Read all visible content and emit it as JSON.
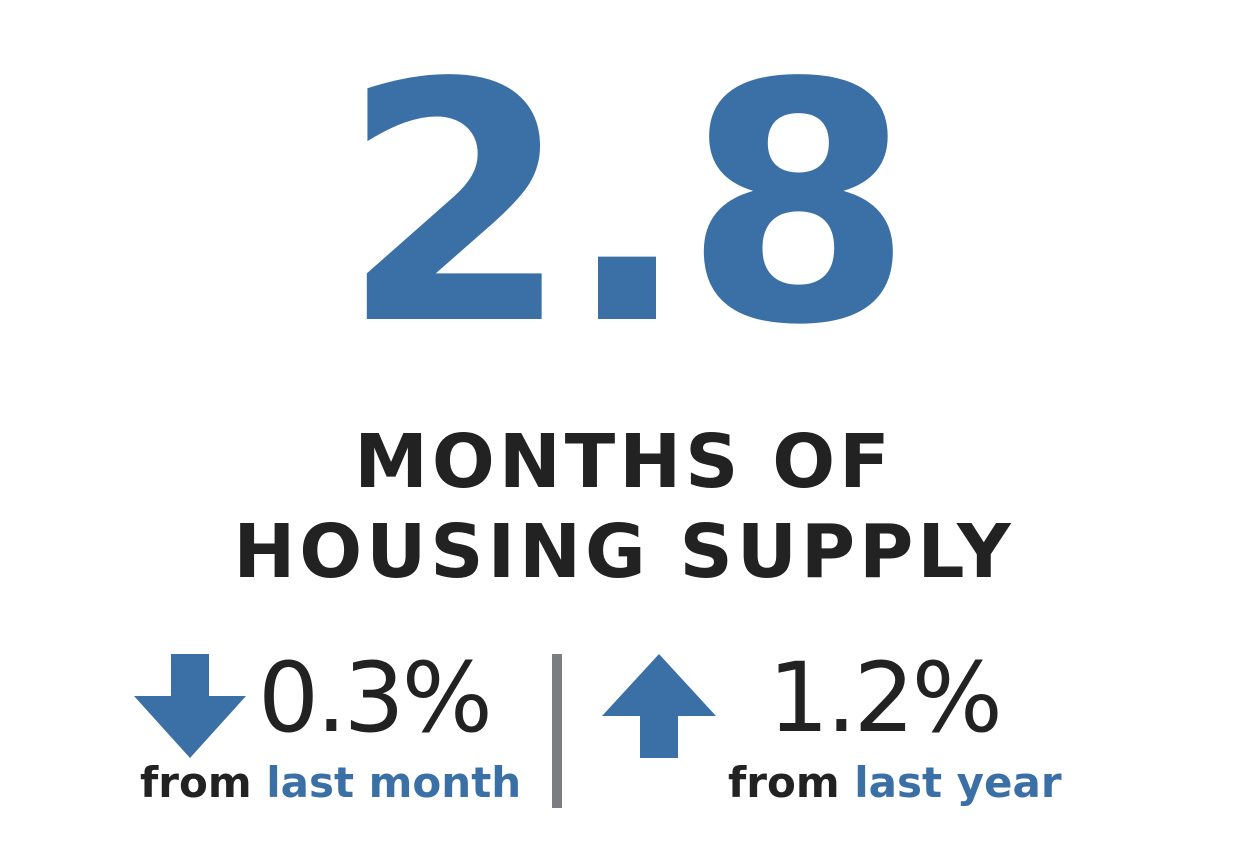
{
  "headline": {
    "value": "2.8",
    "label_line1": "MONTHS OF",
    "label_line2": "HOUSING SUPPLY"
  },
  "stats": [
    {
      "direction": "down",
      "icon": "arrow-down-icon",
      "value": "0.3%",
      "caption_prefix": "from",
      "caption_highlight": "last month"
    },
    {
      "direction": "up",
      "icon": "arrow-up-icon",
      "value": "1.2%",
      "caption_prefix": "from",
      "caption_highlight": "last year"
    }
  ],
  "colors": {
    "accent": "#3a70a6",
    "text": "#222222",
    "divider": "#7b7d80"
  }
}
